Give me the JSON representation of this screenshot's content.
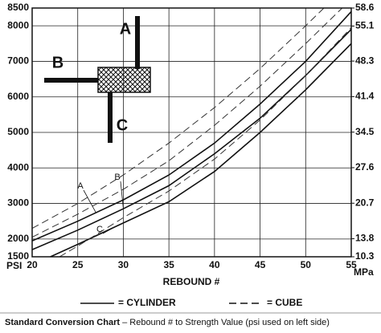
{
  "chart_data": {
    "type": "line",
    "x_label": "REBOUND #",
    "y_label": "PSI",
    "y2_label": "MPa",
    "xlim": [
      20,
      55
    ],
    "xticks": [
      20,
      25,
      30,
      35,
      40,
      45,
      50,
      55
    ],
    "ylim": [
      1500,
      8500
    ],
    "yticks": [
      1500,
      2000,
      3000,
      4000,
      5000,
      6000,
      7000,
      8000,
      8500
    ],
    "y2lim": [
      10.3,
      58.6
    ],
    "y2ticks": [
      10.3,
      13.8,
      20.7,
      27.6,
      34.5,
      41.4,
      48.3,
      55.1,
      58.6
    ],
    "grid": true,
    "series": [
      {
        "name": "A",
        "style": "solid",
        "color": "#111111",
        "x": [
          20,
          25,
          30,
          35,
          40,
          45,
          50,
          55
        ],
        "values": [
          1950,
          2500,
          3100,
          3800,
          4700,
          5800,
          7000,
          8400
        ]
      },
      {
        "name": "B",
        "style": "solid",
        "color": "#111111",
        "x": [
          20,
          25,
          30,
          35,
          40,
          45,
          50,
          55
        ],
        "values": [
          1700,
          2250,
          2850,
          3500,
          4400,
          5400,
          6600,
          7900
        ]
      },
      {
        "name": "C",
        "style": "solid",
        "color": "#111111",
        "x": [
          22,
          25,
          30,
          35,
          40,
          45,
          50,
          55
        ],
        "values": [
          1500,
          1850,
          2450,
          3050,
          3900,
          5000,
          6200,
          7500
        ]
      },
      {
        "style": "dashed",
        "color": "#333333",
        "x": [
          20,
          25,
          30,
          35,
          40,
          45,
          50,
          52
        ],
        "values": [
          2300,
          3000,
          3800,
          4700,
          5700,
          6800,
          8000,
          8500
        ]
      },
      {
        "style": "dashed",
        "color": "#333333",
        "x": [
          20,
          25,
          30,
          35,
          40,
          45,
          50,
          54
        ],
        "values": [
          2050,
          2700,
          3400,
          4200,
          5200,
          6300,
          7500,
          8500
        ]
      },
      {
        "style": "dashed",
        "color": "#333333",
        "x": [
          23,
          25,
          30,
          35,
          40,
          45,
          50,
          55
        ],
        "values": [
          1500,
          1800,
          2600,
          3350,
          4250,
          5350,
          6600,
          7950
        ]
      }
    ],
    "legend": [
      {
        "label": "= CYLINDER",
        "style": "solid"
      },
      {
        "label": "= CUBE",
        "style": "dashed"
      }
    ]
  },
  "diagram": {
    "labels": [
      "A",
      "B",
      "C"
    ]
  },
  "caption": {
    "title": "Standard Conversion Chart",
    "text": " – Rebound # to Strength Value (psi used on left side)"
  }
}
